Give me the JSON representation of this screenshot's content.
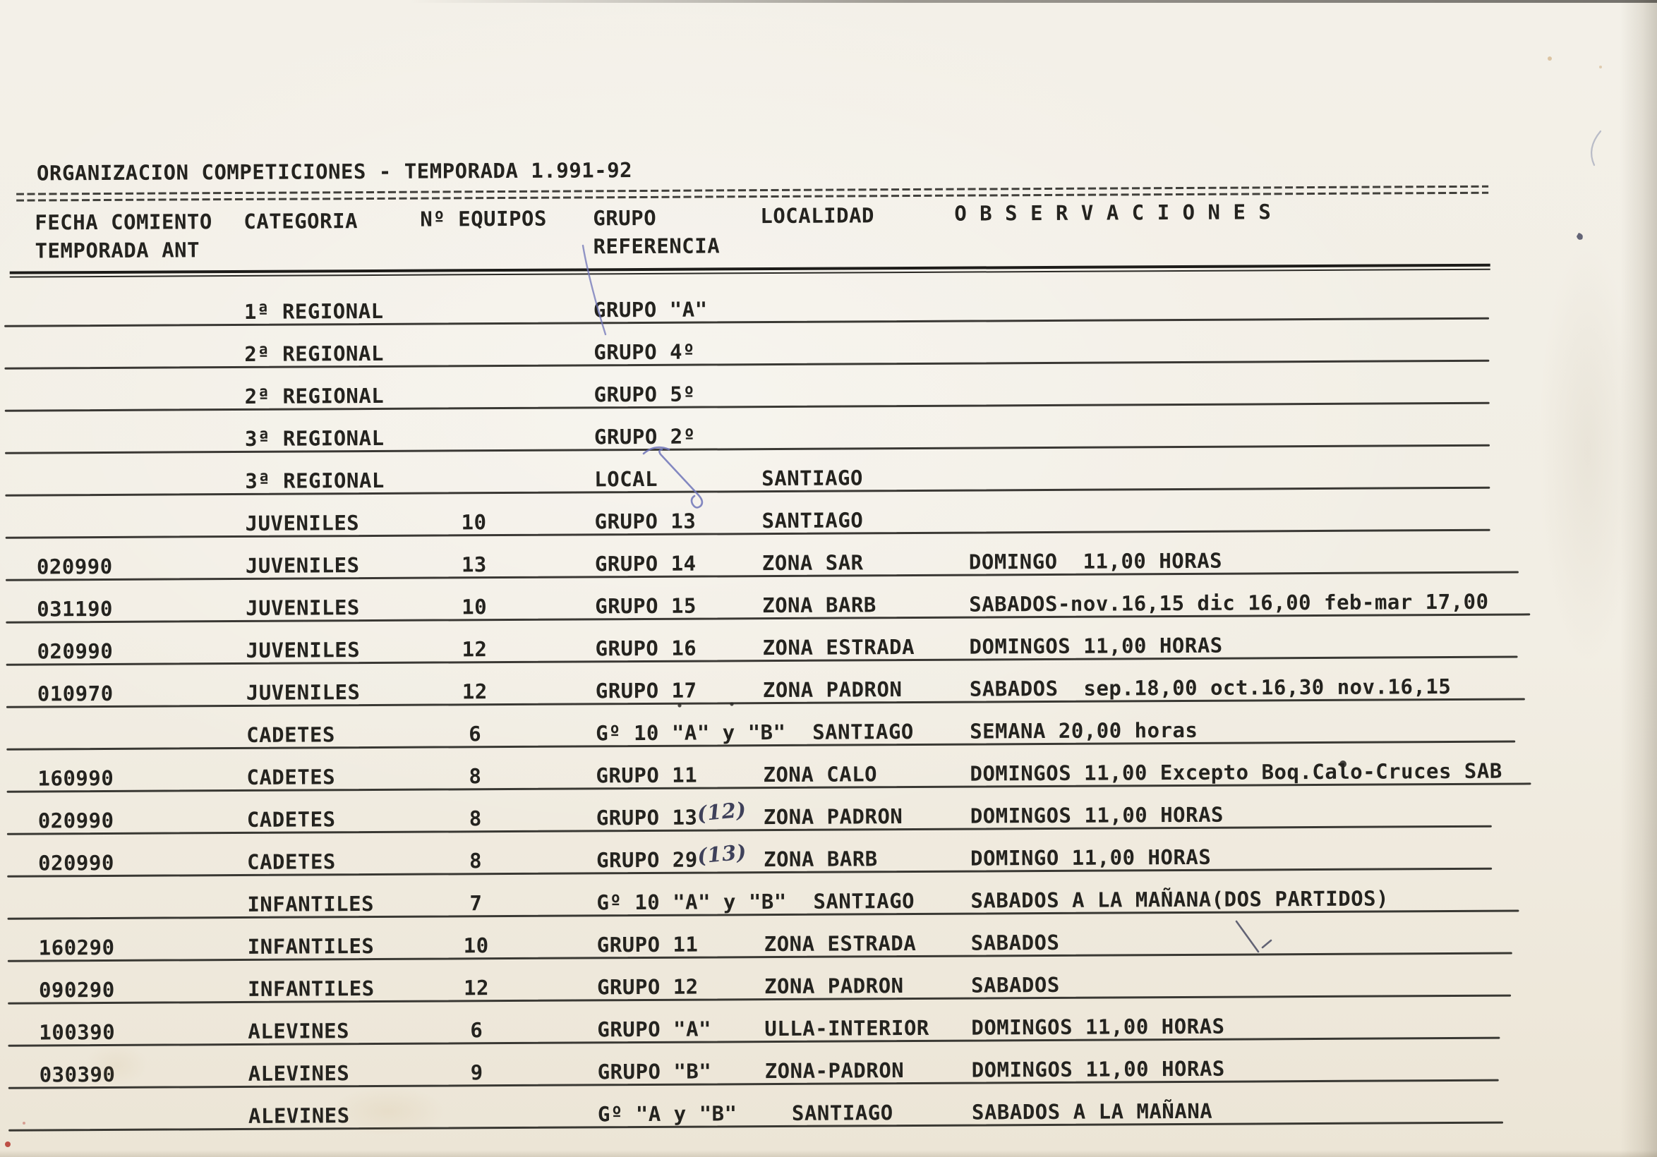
{
  "document": {
    "title": "ORGANIZACION COMPETICIONES - TEMPORADA 1.991-92",
    "header": {
      "col_fecha_line1": "FECHA COMIENTO",
      "col_fecha_line2": "TEMPORADA ANT",
      "col_categoria": "CATEGORIA",
      "col_equipos": "Nº EQUIPOS",
      "col_grupo_line1": "GRUPO",
      "col_grupo_line2": "REFERENCIA",
      "col_localidad": "LOCALIDAD",
      "col_observaciones": "O B S E R V A C I O N E S"
    },
    "rows": [
      {
        "fecha": "",
        "categoria": "1ª REGIONAL",
        "equipos": "",
        "grupo": "GRUPO \"A\"",
        "nota": "",
        "localidad": "",
        "observaciones": ""
      },
      {
        "fecha": "",
        "categoria": "2ª REGIONAL",
        "equipos": "",
        "grupo": "GRUPO 4º",
        "nota": "",
        "localidad": "",
        "observaciones": ""
      },
      {
        "fecha": "",
        "categoria": "2ª REGIONAL",
        "equipos": "",
        "grupo": "GRUPO 5º",
        "nota": "",
        "localidad": "",
        "observaciones": ""
      },
      {
        "fecha": "",
        "categoria": "3ª REGIONAL",
        "equipos": "",
        "grupo": "GRUPO 2º",
        "nota": "",
        "localidad": "",
        "observaciones": ""
      },
      {
        "fecha": "",
        "categoria": "3ª REGIONAL",
        "equipos": "",
        "grupo": "LOCAL",
        "nota": "",
        "localidad": "SANTIAGO",
        "observaciones": ""
      },
      {
        "fecha": "",
        "categoria": "JUVENILES",
        "equipos": "10",
        "grupo": "GRUPO 13",
        "nota": "",
        "localidad": "SANTIAGO",
        "observaciones": ""
      },
      {
        "fecha": "020990",
        "categoria": "JUVENILES",
        "equipos": "13",
        "grupo": "GRUPO 14",
        "nota": "",
        "localidad": "ZONA SAR",
        "observaciones": "DOMINGO  11,00 HORAS"
      },
      {
        "fecha": "031190",
        "categoria": "JUVENILES",
        "equipos": "10",
        "grupo": "GRUPO 15",
        "nota": "",
        "localidad": "ZONA BARB",
        "observaciones": "SABADOS-nov.16,15 dic 16,00 feb-mar 17,00"
      },
      {
        "fecha": "020990",
        "categoria": "JUVENILES",
        "equipos": "12",
        "grupo": "GRUPO 16",
        "nota": "",
        "localidad": "ZONA ESTRADA",
        "observaciones": "DOMINGOS 11,00 HORAS"
      },
      {
        "fecha": "010970",
        "categoria": "JUVENILES",
        "equipos": "12",
        "grupo": "GRUPO 17",
        "nota": "",
        "localidad": "ZONA PADRON",
        "observaciones": "SABADOS  sep.18,00 oct.16,30 nov.16,15"
      },
      {
        "fecha": "",
        "categoria": "CADETES",
        "equipos": "6",
        "grupo": "Gº 10 \"A\" y \"B\"",
        "nota": "",
        "localidad": "SANTIAGO",
        "observaciones": "SEMANA 20,00 horas"
      },
      {
        "fecha": "160990",
        "categoria": "CADETES",
        "equipos": "8",
        "grupo": "GRUPO 11",
        "nota": "",
        "localidad": "ZONA CALO",
        "observaciones": "DOMINGOS 11,00 Excepto Boq.Calo-Cruces SAB"
      },
      {
        "fecha": "020990",
        "categoria": "CADETES",
        "equipos": "8",
        "grupo": "GRUPO 13",
        "nota": "(12)",
        "localidad": "ZONA PADRON",
        "observaciones": "DOMINGOS 11,00 HORAS"
      },
      {
        "fecha": "020990",
        "categoria": "CADETES",
        "equipos": "8",
        "grupo": "GRUPO 29",
        "nota": "(13)",
        "localidad": "ZONA BARB",
        "observaciones": "DOMINGO 11,00 HORAS"
      },
      {
        "fecha": "",
        "categoria": "INFANTILES",
        "equipos": "7",
        "grupo": "Gº 10 \"A\" y \"B\"",
        "nota": "",
        "localidad": "SANTIAGO",
        "observaciones": "SABADOS A LA MAÑANA(DOS PARTIDOS)"
      },
      {
        "fecha": "160290",
        "categoria": "INFANTILES",
        "equipos": "10",
        "grupo": "GRUPO 11",
        "nota": "",
        "localidad": "ZONA ESTRADA",
        "observaciones": "SABADOS"
      },
      {
        "fecha": "090290",
        "categoria": "INFANTILES",
        "equipos": "12",
        "grupo": "GRUPO 12",
        "nota": "",
        "localidad": "ZONA PADRON",
        "observaciones": "SABADOS"
      },
      {
        "fecha": "100390",
        "categoria": "ALEVINES",
        "equipos": "6",
        "grupo": "GRUPO \"A\"",
        "nota": "",
        "localidad": "ULLA-INTERIOR",
        "observaciones": "DOMINGOS 11,00 HORAS"
      },
      {
        "fecha": "030390",
        "categoria": "ALEVINES",
        "equipos": "9",
        "grupo": "GRUPO \"B\"",
        "nota": "",
        "localidad": "ZONA-PADRON",
        "observaciones": "DOMINGOS 11,00 HORAS"
      },
      {
        "fecha": "",
        "categoria": "ALEVINES",
        "equipos": "",
        "grupo": "Gº \"A y \"B\"",
        "nota": "",
        "localidad": "SANTIAGO",
        "observaciones": "SABADOS A LA MAÑANA"
      }
    ],
    "ink_colors": {
      "typewriter": "#24231f",
      "pen_blue": "#6f74b8",
      "pencil_dark": "#3f415a",
      "faint_pen": "#99a0b5",
      "red_mark": "#b5352c"
    }
  }
}
